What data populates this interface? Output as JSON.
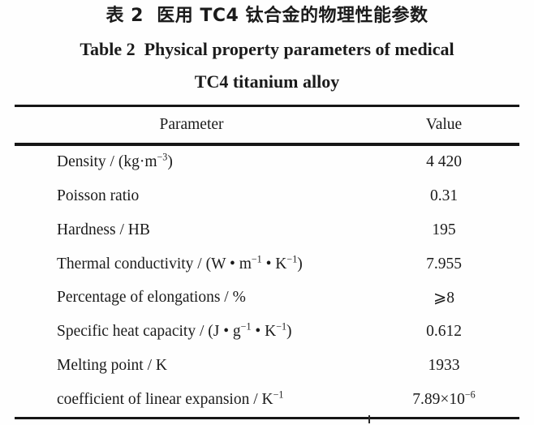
{
  "page": {
    "background_color": "#fefefe",
    "text_color": "#1b1b1b",
    "rule_color": "#161616"
  },
  "caption": {
    "zh": "表 2  医用 TC4 钛合金的物理性能参数",
    "en_line1": "Table 2  Physical property parameters of medical",
    "en_line2": "TC4 titanium alloy"
  },
  "table": {
    "columns": [
      "Parameter",
      "Value"
    ],
    "rows": [
      {
        "parameter": "Density / (kg·m^{−3})",
        "value": "4 420"
      },
      {
        "parameter": "Poisson ratio",
        "value": "0.31"
      },
      {
        "parameter": "Hardness / HB",
        "value": "195"
      },
      {
        "parameter": "Thermal conductivity / (W • m^{−1} • K^{−1})",
        "value": "7.955"
      },
      {
        "parameter": "Percentage of elongations / %",
        "value": "⩾8"
      },
      {
        "parameter": "Specific heat capacity / (J • g^{−1} • K^{−1})",
        "value": "0.612"
      },
      {
        "parameter": "Melting point / K",
        "value": "1933"
      },
      {
        "parameter": "coefficient of linear expansion / K^{−1}",
        "value": "7.89×10^{−6}"
      }
    ]
  }
}
